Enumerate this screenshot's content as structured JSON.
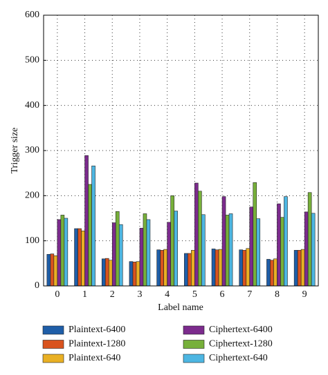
{
  "chart_data": {
    "type": "bar",
    "x_label": "Label name",
    "y_label": "Trigger size",
    "categories": [
      "0",
      "1",
      "2",
      "3",
      "4",
      "5",
      "6",
      "7",
      "8",
      "9"
    ],
    "ylim": [
      0,
      600
    ],
    "yticks": [
      0,
      100,
      200,
      300,
      400,
      500,
      600
    ],
    "grid": true,
    "series": [
      {
        "name": "Plaintext-6400",
        "color": "#1f5ea8",
        "values": [
          70,
          127,
          60,
          54,
          80,
          72,
          82,
          80,
          59,
          79
        ]
      },
      {
        "name": "Plaintext-1280",
        "color": "#d9531e",
        "values": [
          71,
          127,
          61,
          53,
          79,
          72,
          80,
          79,
          57,
          79
        ]
      },
      {
        "name": "Plaintext-640",
        "color": "#e9b024",
        "values": [
          67,
          122,
          57,
          54,
          81,
          79,
          81,
          83,
          60,
          81
        ]
      },
      {
        "name": "Ciphertext-6400",
        "color": "#7c2b8d",
        "values": [
          147,
          289,
          140,
          128,
          141,
          228,
          198,
          175,
          182,
          164
        ]
      },
      {
        "name": "Ciphertext-1280",
        "color": "#77b03a",
        "values": [
          157,
          225,
          165,
          160,
          200,
          210,
          157,
          229,
          152,
          207
        ]
      },
      {
        "name": "Ciphertext-640",
        "color": "#4db6e2",
        "values": [
          150,
          266,
          136,
          147,
          166,
          158,
          160,
          149,
          198,
          161
        ]
      }
    ]
  }
}
